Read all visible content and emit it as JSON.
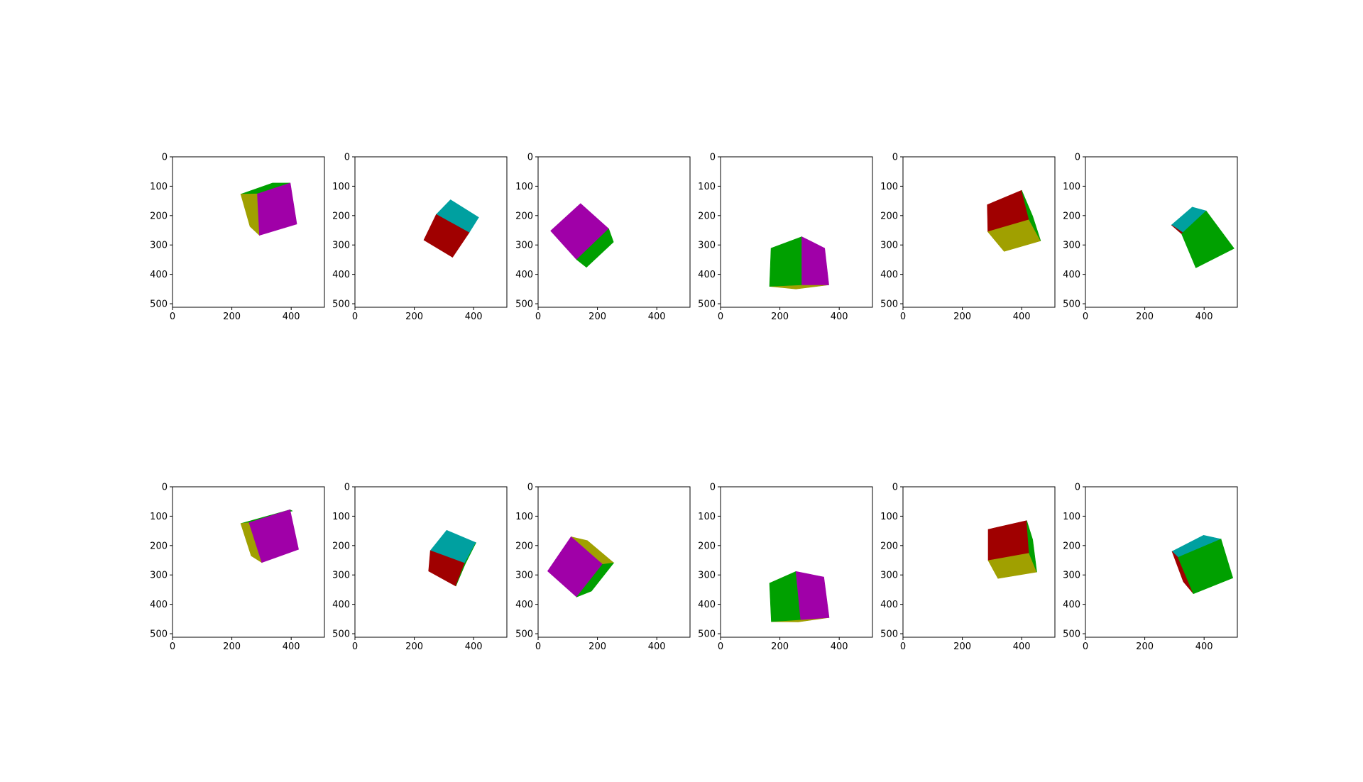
{
  "figure": {
    "background": "#ffffff",
    "axis_color": "#000000",
    "face_colors": {
      "magenta": "#a000a8",
      "green": "#00a000",
      "olive": "#a0a000",
      "red": "#a00000",
      "teal": "#00a0a0"
    },
    "rows": 2,
    "cols": 6,
    "panels": [
      {
        "type": "image",
        "xlim": [
          0,
          512
        ],
        "ylim": [
          512,
          0
        ],
        "x_ticks": [
          "0",
          "200",
          "400"
        ],
        "y_ticks": [
          "0",
          "100",
          "200",
          "300",
          "400",
          "500"
        ],
        "faces": [
          {
            "color": "green",
            "points": [
              [
                230,
                127
              ],
              [
                337,
                89
              ],
              [
                397,
                89
              ],
              [
                286,
                126
              ]
            ]
          },
          {
            "color": "olive",
            "points": [
              [
                230,
                127
              ],
              [
                286,
                126
              ],
              [
                293,
                267
              ],
              [
                261,
                237
              ]
            ]
          },
          {
            "color": "magenta",
            "points": [
              [
                286,
                126
              ],
              [
                397,
                89
              ],
              [
                419,
                229
              ],
              [
                293,
                267
              ]
            ]
          }
        ]
      },
      {
        "type": "image",
        "xlim": [
          0,
          512
        ],
        "ylim": [
          512,
          0
        ],
        "x_ticks": [
          "0",
          "200",
          "400"
        ],
        "y_ticks": [
          "0",
          "100",
          "200",
          "300",
          "400",
          "500"
        ],
        "faces": [
          {
            "color": "teal",
            "points": [
              [
                274,
                196
              ],
              [
                322,
                146
              ],
              [
                417,
                206
              ],
              [
                385,
                258
              ]
            ]
          },
          {
            "color": "red",
            "points": [
              [
                274,
                196
              ],
              [
                385,
                258
              ],
              [
                329,
                342
              ],
              [
                232,
                283
              ]
            ]
          }
        ]
      },
      {
        "type": "image",
        "xlim": [
          0,
          512
        ],
        "ylim": [
          512,
          0
        ],
        "x_ticks": [
          "0",
          "200",
          "400"
        ],
        "y_ticks": [
          "0",
          "100",
          "200",
          "300",
          "400",
          "500"
        ],
        "faces": [
          {
            "color": "magenta",
            "points": [
              [
                42,
                252
              ],
              [
                143,
                159
              ],
              [
                238,
                245
              ],
              [
                130,
                350
              ]
            ]
          },
          {
            "color": "green",
            "points": [
              [
                130,
                350
              ],
              [
                238,
                245
              ],
              [
                254,
                290
              ],
              [
                163,
                376
              ]
            ]
          }
        ]
      },
      {
        "type": "image",
        "xlim": [
          0,
          512
        ],
        "ylim": [
          512,
          0
        ],
        "x_ticks": [
          "0",
          "200",
          "400"
        ],
        "y_ticks": [
          "0",
          "100",
          "200",
          "300",
          "400",
          "500"
        ],
        "faces": [
          {
            "color": "olive",
            "points": [
              [
                165,
                441
              ],
              [
                274,
                436
              ],
              [
                365,
                436
              ],
              [
                254,
                450
              ]
            ]
          },
          {
            "color": "green",
            "points": [
              [
                170,
                311
              ],
              [
                274,
                272
              ],
              [
                274,
                436
              ],
              [
                165,
                441
              ]
            ]
          },
          {
            "color": "magenta",
            "points": [
              [
                274,
                272
              ],
              [
                351,
                311
              ],
              [
                365,
                436
              ],
              [
                274,
                436
              ]
            ]
          }
        ]
      },
      {
        "type": "image",
        "xlim": [
          0,
          512
        ],
        "ylim": [
          512,
          0
        ],
        "x_ticks": [
          "0",
          "200",
          "400"
        ],
        "y_ticks": [
          "0",
          "100",
          "200",
          "300",
          "400",
          "500"
        ],
        "faces": [
          {
            "color": "red",
            "points": [
              [
                284,
                163
              ],
              [
                400,
                114
              ],
              [
                425,
                214
              ],
              [
                286,
                255
              ]
            ]
          },
          {
            "color": "olive",
            "points": [
              [
                286,
                255
              ],
              [
                425,
                214
              ],
              [
                464,
                286
              ],
              [
                341,
                322
              ]
            ]
          },
          {
            "color": "green",
            "points": [
              [
                400,
                114
              ],
              [
                437,
                202
              ],
              [
                464,
                286
              ],
              [
                425,
                214
              ]
            ]
          }
        ]
      },
      {
        "type": "image",
        "xlim": [
          0,
          512
        ],
        "ylim": [
          512,
          0
        ],
        "x_ticks": [
          "0",
          "200",
          "400"
        ],
        "y_ticks": [
          "0",
          "100",
          "200",
          "300",
          "400",
          "500"
        ],
        "faces": [
          {
            "color": "teal",
            "points": [
              [
                290,
                232
              ],
              [
                360,
                171
              ],
              [
                407,
                184
              ],
              [
                324,
                262
              ]
            ]
          },
          {
            "color": "red",
            "points": [
              [
                290,
                232
              ],
              [
                324,
                262
              ],
              [
                352,
                290
              ],
              [
                334,
                262
              ]
            ]
          },
          {
            "color": "green",
            "points": [
              [
                324,
                262
              ],
              [
                407,
                184
              ],
              [
                501,
                312
              ],
              [
                372,
                378
              ]
            ]
          }
        ]
      },
      {
        "type": "image",
        "xlim": [
          0,
          512
        ],
        "ylim": [
          512,
          0
        ],
        "x_ticks": [
          "0",
          "200",
          "400"
        ],
        "y_ticks": [
          "0",
          "100",
          "200",
          "300",
          "400",
          "500"
        ],
        "faces": [
          {
            "color": "green",
            "points": [
              [
                230,
                125
              ],
              [
                396,
                78
              ],
              [
                404,
                82
              ],
              [
                258,
                122
              ]
            ]
          },
          {
            "color": "olive",
            "points": [
              [
                230,
                125
              ],
              [
                258,
                122
              ],
              [
                301,
                258
              ],
              [
                265,
                235
              ]
            ]
          },
          {
            "color": "magenta",
            "points": [
              [
                258,
                122
              ],
              [
                396,
                78
              ],
              [
                425,
                213
              ],
              [
                301,
                258
              ]
            ]
          }
        ]
      },
      {
        "type": "image",
        "xlim": [
          0,
          512
        ],
        "ylim": [
          512,
          0
        ],
        "x_ticks": [
          "0",
          "200",
          "400"
        ],
        "y_ticks": [
          "0",
          "100",
          "200",
          "300",
          "400",
          "500"
        ],
        "faces": [
          {
            "color": "teal",
            "points": [
              [
                254,
                217
              ],
              [
                309,
                148
              ],
              [
                408,
                190
              ],
              [
                370,
                260
              ]
            ]
          },
          {
            "color": "red",
            "points": [
              [
                254,
                217
              ],
              [
                370,
                260
              ],
              [
                340,
                338
              ],
              [
                248,
                287
              ]
            ]
          },
          {
            "color": "green",
            "points": [
              [
                370,
                260
              ],
              [
                408,
                190
              ],
              [
                372,
                262
              ],
              [
                340,
                338
              ]
            ]
          }
        ]
      },
      {
        "type": "image",
        "xlim": [
          0,
          512
        ],
        "ylim": [
          512,
          0
        ],
        "x_ticks": [
          "0",
          "200",
          "400"
        ],
        "y_ticks": [
          "0",
          "100",
          "200",
          "300",
          "400",
          "500"
        ],
        "faces": [
          {
            "color": "olive",
            "points": [
              [
                111,
                170
              ],
              [
                166,
                183
              ],
              [
                255,
                259
              ],
              [
                217,
                264
              ]
            ]
          },
          {
            "color": "magenta",
            "points": [
              [
                32,
                287
              ],
              [
                111,
                170
              ],
              [
                217,
                264
              ],
              [
                130,
                375
              ]
            ]
          },
          {
            "color": "green",
            "points": [
              [
                130,
                375
              ],
              [
                217,
                264
              ],
              [
                255,
                259
              ],
              [
                180,
                355
              ]
            ]
          }
        ]
      },
      {
        "type": "image",
        "xlim": [
          0,
          512
        ],
        "ylim": [
          512,
          0
        ],
        "x_ticks": [
          "0",
          "200",
          "400"
        ],
        "y_ticks": [
          "0",
          "100",
          "200",
          "300",
          "400",
          "500"
        ],
        "faces": [
          {
            "color": "olive",
            "points": [
              [
                171,
                459
              ],
              [
                270,
                452
              ],
              [
                366,
                445
              ],
              [
                262,
                460
              ]
            ]
          },
          {
            "color": "green",
            "points": [
              [
                165,
                328
              ],
              [
                254,
                288
              ],
              [
                270,
                452
              ],
              [
                171,
                459
              ]
            ]
          },
          {
            "color": "magenta",
            "points": [
              [
                254,
                288
              ],
              [
                348,
                307
              ],
              [
                366,
                445
              ],
              [
                270,
                452
              ]
            ]
          }
        ]
      },
      {
        "type": "image",
        "xlim": [
          0,
          512
        ],
        "ylim": [
          512,
          0
        ],
        "x_ticks": [
          "0",
          "200",
          "400"
        ],
        "y_ticks": [
          "0",
          "100",
          "200",
          "300",
          "400",
          "500"
        ],
        "faces": [
          {
            "color": "red",
            "points": [
              [
                287,
                145
              ],
              [
                417,
                115
              ],
              [
                425,
                226
              ],
              [
                287,
                251
              ]
            ]
          },
          {
            "color": "olive",
            "points": [
              [
                287,
                251
              ],
              [
                425,
                226
              ],
              [
                451,
                290
              ],
              [
                320,
                312
              ]
            ]
          },
          {
            "color": "green",
            "points": [
              [
                417,
                115
              ],
              [
                437,
                180
              ],
              [
                451,
                290
              ],
              [
                425,
                226
              ]
            ]
          }
        ]
      },
      {
        "type": "image",
        "xlim": [
          0,
          512
        ],
        "ylim": [
          512,
          0
        ],
        "x_ticks": [
          "0",
          "200",
          "400"
        ],
        "y_ticks": [
          "0",
          "100",
          "200",
          "300",
          "400",
          "500"
        ],
        "faces": [
          {
            "color": "teal",
            "points": [
              [
                292,
                220
              ],
              [
                398,
                165
              ],
              [
                457,
                178
              ],
              [
                312,
                240
              ]
            ]
          },
          {
            "color": "red",
            "points": [
              [
                292,
                220
              ],
              [
                312,
                240
              ],
              [
                364,
                364
              ],
              [
                330,
                323
              ]
            ]
          },
          {
            "color": "green",
            "points": [
              [
                312,
                240
              ],
              [
                457,
                178
              ],
              [
                497,
                310
              ],
              [
                364,
                364
              ]
            ]
          }
        ]
      }
    ]
  }
}
